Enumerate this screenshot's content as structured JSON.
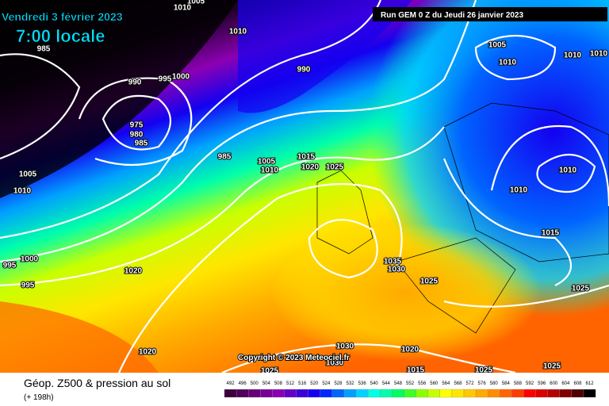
{
  "header": {
    "date": "Vendredi 3 février 2023",
    "time": "7:00 locale",
    "run": "Run GEM 0 Z du Jeudi 26 janvier 2023"
  },
  "isobar_labels": [
    "1010",
    "1005",
    "985",
    "1010",
    "990",
    "995",
    "1000",
    "990",
    "975",
    "980",
    "985",
    "985",
    "1005",
    "1010",
    "1015",
    "1020",
    "1025",
    "1005",
    "1010",
    "1010",
    "1010",
    "1005",
    "1010",
    "1010",
    "1010",
    "1015",
    "995",
    "1000",
    "995",
    "1020",
    "1035",
    "1030",
    "1025",
    "1025",
    "1020",
    "1030",
    "1020",
    "1030",
    "1025",
    "1015",
    "1025",
    "1025"
  ],
  "copyright": "Copyright © 2023 Meteociel.fr",
  "footer": {
    "title": "Géop. Z500 & pression au sol",
    "subtitle": "(+ 198h)"
  },
  "scale": {
    "values": [
      492,
      496,
      500,
      504,
      508,
      512,
      516,
      520,
      524,
      528,
      532,
      536,
      540,
      544,
      548,
      552,
      556,
      560,
      564,
      568,
      572,
      576,
      580,
      584,
      588,
      592,
      596,
      600,
      604,
      608,
      612
    ],
    "colors": [
      "#3c003c",
      "#50005a",
      "#640078",
      "#780096",
      "#8c00b4",
      "#6400c8",
      "#3c00dc",
      "#1400f0",
      "#0028ff",
      "#0064ff",
      "#00a0ff",
      "#00d2ff",
      "#00ffe6",
      "#00ffaa",
      "#00ff64",
      "#3cff28",
      "#8cff00",
      "#c8ff00",
      "#ffff00",
      "#ffe600",
      "#ffc800",
      "#ffaa00",
      "#ff8c00",
      "#ff6400",
      "#ff3c00",
      "#ff0000",
      "#dc0000",
      "#b40000",
      "#820000",
      "#500000",
      "#000000"
    ]
  }
}
